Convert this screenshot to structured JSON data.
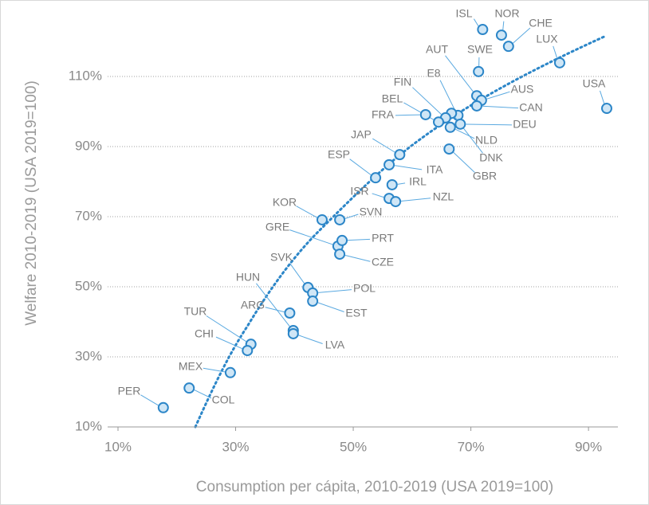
{
  "chart_data": {
    "type": "scatter",
    "x_label": "Consumption per cápita, 2010-2019 (USA 2019=100)",
    "y_label": "Welfare 2010-2019 (USA 2019=100)",
    "labels": [
      "ISL",
      "NOR",
      "CHE",
      "LUX",
      "USA",
      "AUT",
      "SWE",
      "AUS",
      "CAN",
      "E8",
      "DNK",
      "FIN",
      "BEL",
      "FRA",
      "DEU",
      "NLD",
      "GBR",
      "JAP",
      "ITA",
      "ESP",
      "IRL",
      "ISR",
      "NZL",
      "KOR",
      "SVN",
      "GRE",
      "PRT",
      "CZE",
      "SVK",
      "POL",
      "EST",
      "ARG",
      "HUN",
      "LVA",
      "TUR",
      "CHI",
      "MEX",
      "COL",
      "PER"
    ],
    "x": [
      72.0,
      75.2,
      76.4,
      85.1,
      93.1,
      71.0,
      71.3,
      71.8,
      71.0,
      67.8,
      66.7,
      65.7,
      64.5,
      62.3,
      68.2,
      66.5,
      66.3,
      57.9,
      56.1,
      53.8,
      56.6,
      56.1,
      57.2,
      44.7,
      47.7,
      47.4,
      48.1,
      47.7,
      42.3,
      43.1,
      43.1,
      39.2,
      39.8,
      39.8,
      32.6,
      32.0,
      29.1,
      22.1,
      17.7
    ],
    "values": [
      123.4,
      121.8,
      118.6,
      113.9,
      100.9,
      104.5,
      111.4,
      103.2,
      101.6,
      98.9,
      99.5,
      98.2,
      97.0,
      99.1,
      96.4,
      95.5,
      89.3,
      87.7,
      84.8,
      81.1,
      79.1,
      75.2,
      74.3,
      69.1,
      69.1,
      61.6,
      63.2,
      59.3,
      49.8,
      48.2,
      45.9,
      42.5,
      37.5,
      36.6,
      33.6,
      31.8,
      25.5,
      21.1,
      15.5
    ],
    "color": "#2c86c8",
    "xlim": [
      6,
      95
    ],
    "ylim": [
      10,
      130
    ],
    "xticks": [
      {
        "value": 10,
        "label": "10%"
      },
      {
        "value": 30,
        "label": "30%"
      },
      {
        "value": 50,
        "label": "50%"
      },
      {
        "value": 70,
        "label": "70%"
      },
      {
        "value": 90,
        "label": "90%"
      }
    ],
    "yticks": [
      {
        "value": 10,
        "label": "10%"
      },
      {
        "value": 30,
        "label": "30%"
      },
      {
        "value": 50,
        "label": "50%"
      },
      {
        "value": 70,
        "label": "70%"
      },
      {
        "value": 90,
        "label": "90%"
      },
      {
        "value": 110,
        "label": "110%"
      }
    ],
    "grid": true
  }
}
